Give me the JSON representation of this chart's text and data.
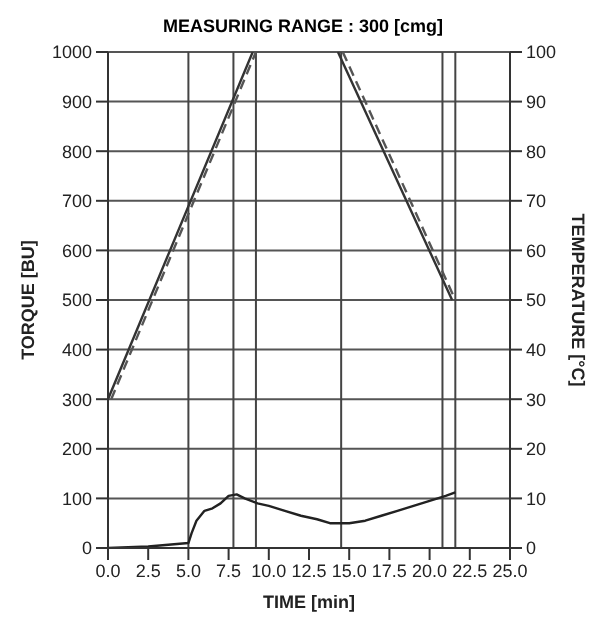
{
  "chart_data": {
    "type": "line",
    "title": "MEASURING RANGE : 300 [cmg]",
    "xlabel": "TIME [min]",
    "ylabel": "TORQUE [BU]",
    "y2label": "TEMPERATURE [°C]",
    "xlim": [
      0,
      25
    ],
    "xticks": [
      {
        "value": 0,
        "label": "0.0"
      },
      {
        "value": 2.5,
        "label": "2.5"
      },
      {
        "value": 5,
        "label": "5.0"
      },
      {
        "value": 7.5,
        "label": "7.5"
      },
      {
        "value": 10,
        "label": "10.0"
      },
      {
        "value": 12.5,
        "label": "12.5"
      },
      {
        "value": 15,
        "label": "15.0"
      },
      {
        "value": 17.5,
        "label": "17.5"
      },
      {
        "value": 20,
        "label": "20.0"
      },
      {
        "value": 22.5,
        "label": "22.5"
      },
      {
        "value": 25,
        "label": "25.0"
      }
    ],
    "ylim": [
      0,
      1000
    ],
    "yticks": [
      0,
      100,
      200,
      300,
      400,
      500,
      600,
      700,
      800,
      900,
      1000
    ],
    "y2lim": [
      0,
      100
    ],
    "y2ticks": [
      0,
      10,
      20,
      30,
      40,
      50,
      60,
      70,
      80,
      90,
      100
    ],
    "grid": "y",
    "marker": "none",
    "ref_lines": [
      {
        "axis": "x",
        "value": 5.0,
        "color": "#444444"
      },
      {
        "axis": "x",
        "value": 7.8,
        "color": "#444444"
      },
      {
        "axis": "x",
        "value": 9.2,
        "color": "#444444"
      },
      {
        "axis": "x",
        "value": 14.5,
        "color": "#444444"
      },
      {
        "axis": "x",
        "value": 20.8,
        "color": "#444444"
      },
      {
        "axis": "x",
        "value": 21.6,
        "color": "#444444"
      }
    ],
    "series": [
      {
        "color": "#222222",
        "line_style": "solid",
        "x": [
          0,
          2.5,
          5,
          5.2,
          5.5,
          6,
          6.5,
          7,
          7.5,
          8,
          8.5,
          9.3,
          10,
          11,
          12,
          13,
          13.8,
          15,
          16,
          17,
          18,
          19,
          20,
          21,
          21.6
        ],
        "values": [
          0,
          3,
          10,
          30,
          55,
          75,
          80,
          90,
          105,
          108,
          100,
          90,
          85,
          75,
          65,
          58,
          50,
          50,
          55,
          65,
          75,
          85,
          95,
          105,
          112
        ]
      },
      {
        "axis": "y2",
        "color": "#333333",
        "line_style": "solid",
        "x": [
          0,
          9.0,
          null,
          14.3,
          21.4
        ],
        "values": [
          30,
          100,
          null,
          100,
          50
        ]
      },
      {
        "axis": "y2",
        "color": "#555555",
        "line_style": "dashed",
        "x": [
          0.2,
          9.2,
          null,
          14.6,
          21.6
        ],
        "values": [
          30,
          100,
          null,
          100,
          50
        ]
      }
    ]
  }
}
